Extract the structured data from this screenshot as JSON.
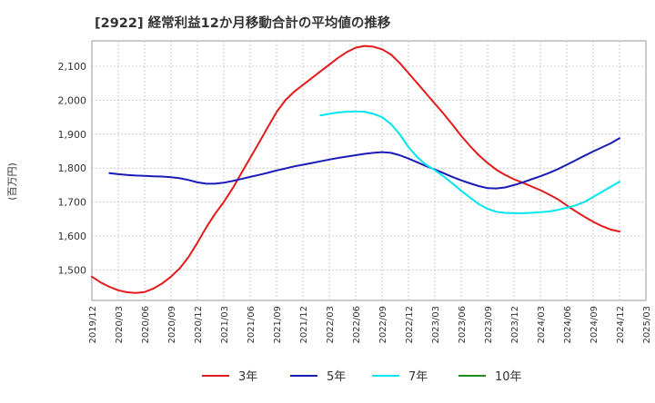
{
  "chart_data": {
    "type": "line",
    "title": "[2922]  経常利益12か月移動合計の平均値の推移",
    "ylabel": "(百万円)",
    "xlabel": "",
    "ylim": [
      1410,
      2175
    ],
    "yticks": [
      1500,
      1600,
      1700,
      1800,
      1900,
      2000,
      2100
    ],
    "ytick_labels": [
      "1,500",
      "1,600",
      "1,700",
      "1,800",
      "1,900",
      "2,000",
      "2,100"
    ],
    "grid": true,
    "legend_position": "bottom",
    "x_labels": [
      "2019/12",
      "2020/03",
      "2020/06",
      "2020/09",
      "2020/12",
      "2021/03",
      "2021/06",
      "2021/09",
      "2021/12",
      "2022/03",
      "2022/06",
      "2022/09",
      "2022/12",
      "2023/03",
      "2023/06",
      "2023/09",
      "2023/12",
      "2024/03",
      "2024/06",
      "2024/09",
      "2024/12",
      "2025/03"
    ],
    "series": [
      {
        "name": "3年",
        "color": "#e41a1c",
        "x": [
          "2019/12",
          "2020/01",
          "2020/02",
          "2020/03",
          "2020/04",
          "2020/05",
          "2020/06",
          "2020/07",
          "2020/08",
          "2020/09",
          "2020/10",
          "2020/11",
          "2020/12",
          "2021/01",
          "2021/02",
          "2021/03",
          "2021/04",
          "2021/05",
          "2021/06",
          "2021/07",
          "2021/08",
          "2021/09",
          "2021/10",
          "2021/11",
          "2021/12",
          "2022/01",
          "2022/02",
          "2022/03",
          "2022/04",
          "2022/05",
          "2022/06",
          "2022/07",
          "2022/08",
          "2022/09",
          "2022/10",
          "2022/11",
          "2022/12",
          "2023/01",
          "2023/02",
          "2023/03",
          "2023/04",
          "2023/05",
          "2023/06",
          "2023/07",
          "2023/08",
          "2023/09",
          "2023/10",
          "2023/11",
          "2023/12",
          "2024/01",
          "2024/02",
          "2024/03",
          "2024/04",
          "2024/05",
          "2024/06",
          "2024/07",
          "2024/08",
          "2024/09",
          "2024/10",
          "2024/11",
          "2024/12"
        ],
        "values": [
          1480,
          1463,
          1450,
          1440,
          1434,
          1432,
          1435,
          1445,
          1460,
          1480,
          1505,
          1538,
          1580,
          1625,
          1665,
          1700,
          1740,
          1785,
          1830,
          1875,
          1920,
          1965,
          2000,
          2025,
          2045,
          2065,
          2085,
          2105,
          2125,
          2142,
          2155,
          2160,
          2158,
          2150,
          2135,
          2110,
          2080,
          2050,
          2020,
          1990,
          1960,
          1928,
          1895,
          1865,
          1838,
          1815,
          1795,
          1780,
          1767,
          1757,
          1746,
          1735,
          1722,
          1708,
          1690,
          1673,
          1657,
          1642,
          1629,
          1619,
          1613
        ]
      },
      {
        "name": "5年",
        "color": "#1a1ab8",
        "x": [
          "2019/12",
          "2020/01",
          "2020/02",
          "2020/03",
          "2020/04",
          "2020/05",
          "2020/06",
          "2020/07",
          "2020/08",
          "2020/09",
          "2020/10",
          "2020/11",
          "2020/12",
          "2021/01",
          "2021/02",
          "2021/03",
          "2021/04",
          "2021/05",
          "2021/06",
          "2021/07",
          "2021/08",
          "2021/09",
          "2021/10",
          "2021/11",
          "2021/12",
          "2022/01",
          "2022/02",
          "2022/03",
          "2022/04",
          "2022/05",
          "2022/06",
          "2022/07",
          "2022/08",
          "2022/09",
          "2022/10",
          "2022/11",
          "2022/12",
          "2023/01",
          "2023/02",
          "2023/03",
          "2023/04",
          "2023/05",
          "2023/06",
          "2023/07",
          "2023/08",
          "2023/09",
          "2023/10",
          "2023/11",
          "2023/12",
          "2024/01",
          "2024/02",
          "2024/03",
          "2024/04",
          "2024/05",
          "2024/06",
          "2024/07",
          "2024/08",
          "2024/09",
          "2024/10",
          "2024/11",
          "2024/12"
        ],
        "values": [
          null,
          null,
          1785,
          1782,
          1780,
          1778,
          1777,
          1776,
          1775,
          1773,
          1770,
          1765,
          1758,
          1754,
          1754,
          1757,
          1762,
          1768,
          1774,
          1780,
          1786,
          1793,
          1799,
          1805,
          1810,
          1815,
          1820,
          1825,
          1830,
          1834,
          1838,
          1842,
          1845,
          1847,
          1845,
          1838,
          1828,
          1817,
          1806,
          1796,
          1785,
          1774,
          1764,
          1755,
          1747,
          1741,
          1740,
          1743,
          1750,
          1758,
          1767,
          1776,
          1786,
          1797,
          1810,
          1823,
          1836,
          1849,
          1861,
          1873,
          1888
        ]
      },
      {
        "name": "7年",
        "color": "#00e5ee",
        "x": [
          "2022/02",
          "2022/03",
          "2022/04",
          "2022/05",
          "2022/06",
          "2022/07",
          "2022/08",
          "2022/09",
          "2022/10",
          "2022/11",
          "2022/12",
          "2023/01",
          "2023/02",
          "2023/03",
          "2023/04",
          "2023/05",
          "2023/06",
          "2023/07",
          "2023/08",
          "2023/09",
          "2023/10",
          "2023/11",
          "2023/12",
          "2024/01",
          "2024/02",
          "2024/03",
          "2024/04",
          "2024/05",
          "2024/06",
          "2024/07",
          "2024/08",
          "2024/09",
          "2024/10",
          "2024/11",
          "2024/12"
        ],
        "values": [
          1955,
          1960,
          1964,
          1966,
          1967,
          1966,
          1960,
          1950,
          1930,
          1900,
          1862,
          1832,
          1810,
          1794,
          1775,
          1755,
          1733,
          1713,
          1694,
          1680,
          1671,
          1668,
          1667,
          1667,
          1668,
          1670,
          1672,
          1677,
          1683,
          1690,
          1700,
          1715,
          1730,
          1745,
          1760
        ]
      },
      {
        "name": "10年",
        "color": "#228b22",
        "x": [],
        "values": []
      }
    ]
  }
}
